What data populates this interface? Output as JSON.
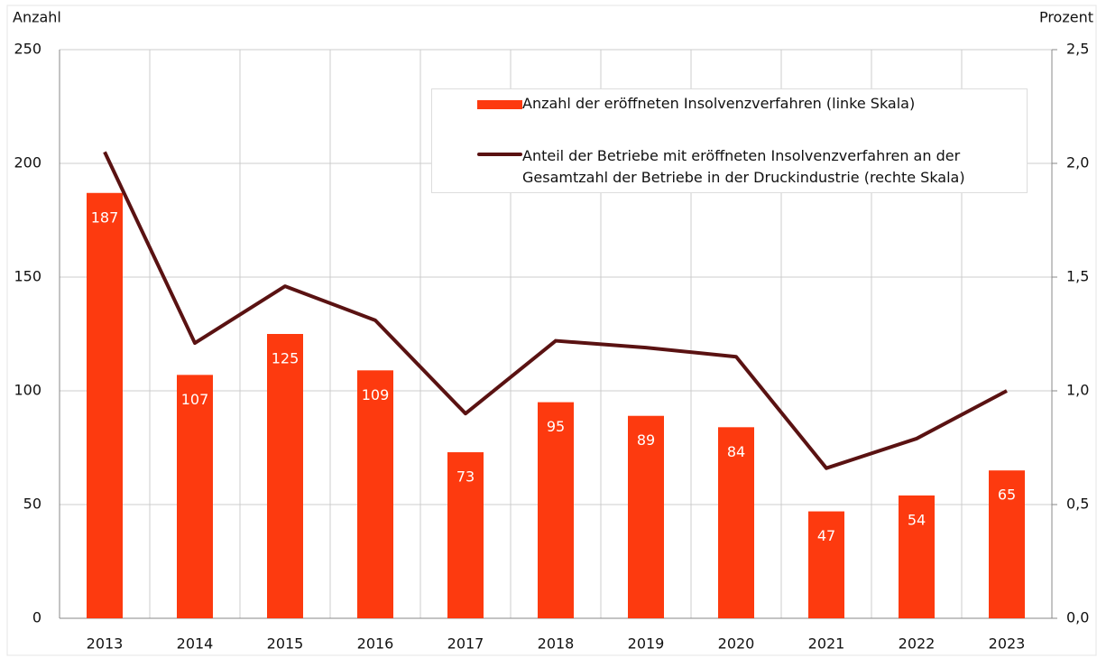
{
  "chart_data": {
    "type": "combo",
    "categories": [
      "2013",
      "2014",
      "2015",
      "2016",
      "2017",
      "2018",
      "2019",
      "2020",
      "2021",
      "2022",
      "2023"
    ],
    "ylabel": "Anzahl",
    "y2label": "Prozent",
    "ylim": [
      0,
      250
    ],
    "yticks": [
      0,
      50,
      100,
      150,
      200,
      250
    ],
    "y2lim": [
      0,
      2.5
    ],
    "y2ticks": [
      {
        "value": 0,
        "label": "0,0"
      },
      {
        "value": 0.5,
        "label": "0,5"
      },
      {
        "value": 1,
        "label": "1,0"
      },
      {
        "value": 1.5,
        "label": "1,5"
      },
      {
        "value": 2,
        "label": "2,0"
      },
      {
        "value": 2.5,
        "label": "2,5"
      }
    ],
    "grid": true,
    "series": [
      {
        "name": "Anzahl der eröffneten Insolvenzverfahren (linke Skala)",
        "type": "bar",
        "color": "#fd3a0f",
        "values": [
          187,
          107,
          125,
          109,
          73,
          95,
          89,
          84,
          47,
          54,
          65
        ]
      },
      {
        "name": "Anteil der Betriebe mit eröffneten Insolvenzverfahren an der Gesamtzahl der Betriebe in der Druckindustrie (rechte Skala)",
        "type": "line",
        "color": "#5a1212",
        "axis": "y2",
        "values": [
          2.05,
          1.21,
          1.46,
          1.31,
          0.9,
          1.22,
          1.19,
          1.15,
          0.66,
          0.79,
          1.0
        ]
      }
    ]
  }
}
